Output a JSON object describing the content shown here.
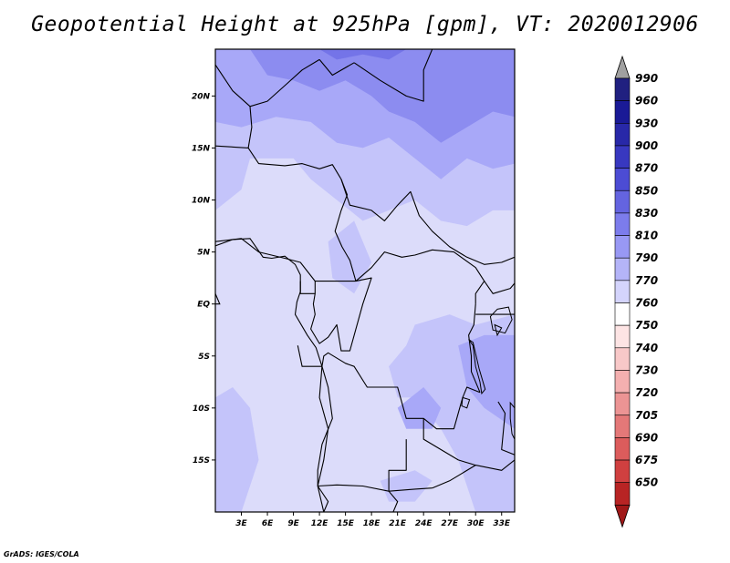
{
  "title": "Geopotential Height at 925hPa [gpm], VT: 2020012906",
  "footer": "GrADS: IGES/COLA",
  "map": {
    "lon_range": [
      0,
      34.5
    ],
    "lat_range": [
      -20,
      24.5
    ],
    "x_ticks": [
      {
        "value": 3,
        "label": "3E"
      },
      {
        "value": 6,
        "label": "6E"
      },
      {
        "value": 9,
        "label": "9E"
      },
      {
        "value": 12,
        "label": "12E"
      },
      {
        "value": 15,
        "label": "15E"
      },
      {
        "value": 18,
        "label": "18E"
      },
      {
        "value": 21,
        "label": "21E"
      },
      {
        "value": 24,
        "label": "24E"
      },
      {
        "value": 27,
        "label": "27E"
      },
      {
        "value": 30,
        "label": "30E"
      },
      {
        "value": 33,
        "label": "33E"
      }
    ],
    "y_ticks": [
      {
        "value": 20,
        "label": "20N"
      },
      {
        "value": 15,
        "label": "15N"
      },
      {
        "value": 10,
        "label": "10N"
      },
      {
        "value": 5,
        "label": "5N"
      },
      {
        "value": 0,
        "label": "EQ"
      },
      {
        "value": -5,
        "label": "5S"
      },
      {
        "value": -10,
        "label": "10S"
      },
      {
        "value": -15,
        "label": "15S"
      }
    ],
    "background_color": "#dcdcfa",
    "shading": [
      {
        "level": "790",
        "color": "#c4c4fa",
        "polygons": [
          [
            [
              0,
              9
            ],
            [
              3,
              11
            ],
            [
              4,
              14
            ],
            [
              9,
              14
            ],
            [
              11,
              12
            ],
            [
              14,
              10
            ],
            [
              17,
              8
            ],
            [
              20,
              9
            ],
            [
              23,
              10
            ],
            [
              26,
              8
            ],
            [
              29,
              7.5
            ],
            [
              32,
              9
            ],
            [
              34.5,
              9
            ],
            [
              34.5,
              24.5
            ],
            [
              0,
              24.5
            ]
          ],
          [
            [
              13,
              6
            ],
            [
              16,
              8
            ],
            [
              18,
              4
            ],
            [
              16,
              1
            ],
            [
              13.5,
              2.5
            ]
          ],
          [
            [
              23,
              -2
            ],
            [
              27,
              -1
            ],
            [
              30,
              -2
            ],
            [
              34.5,
              -1
            ],
            [
              34.5,
              -20
            ],
            [
              30,
              -20
            ],
            [
              28,
              -15
            ],
            [
              26,
              -12
            ],
            [
              23,
              -9
            ],
            [
              21,
              -9
            ],
            [
              20,
              -6
            ],
            [
              22,
              -4
            ]
          ],
          [
            [
              0,
              -9
            ],
            [
              2,
              -8
            ],
            [
              4,
              -10
            ],
            [
              5,
              -15
            ],
            [
              3,
              -20
            ],
            [
              0,
              -20
            ]
          ],
          [
            [
              19,
              -17
            ],
            [
              23,
              -16
            ],
            [
              25,
              -17
            ],
            [
              23,
              -19
            ],
            [
              20,
              -19
            ]
          ]
        ]
      },
      {
        "level": "810",
        "color": "#a8a8f8",
        "polygons": [
          [
            [
              0,
              17.5
            ],
            [
              3,
              17
            ],
            [
              7,
              18
            ],
            [
              11,
              17.5
            ],
            [
              14,
              15.5
            ],
            [
              17,
              15
            ],
            [
              20,
              16
            ],
            [
              23,
              14
            ],
            [
              26,
              12
            ],
            [
              29,
              14
            ],
            [
              32,
              13
            ],
            [
              34.5,
              13.5
            ],
            [
              34.5,
              24.5
            ],
            [
              0,
              24.5
            ]
          ],
          [
            [
              28,
              -4
            ],
            [
              31,
              -3
            ],
            [
              34.5,
              -3
            ],
            [
              34.5,
              -12
            ],
            [
              31,
              -10
            ],
            [
              29,
              -8
            ]
          ],
          [
            [
              21,
              -10
            ],
            [
              24,
              -8
            ],
            [
              26,
              -10
            ],
            [
              25,
              -12
            ],
            [
              22,
              -12
            ]
          ]
        ]
      },
      {
        "level": "830",
        "color": "#8c8cf0",
        "polygons": [
          [
            [
              4,
              24.5
            ],
            [
              6,
              22
            ],
            [
              9,
              21.5
            ],
            [
              12,
              20.5
            ],
            [
              15,
              21.5
            ],
            [
              18,
              20
            ],
            [
              20,
              18.5
            ],
            [
              23,
              17.5
            ],
            [
              26,
              15.5
            ],
            [
              29,
              17
            ],
            [
              32,
              18.5
            ],
            [
              34.5,
              18
            ],
            [
              34.5,
              24.5
            ]
          ]
        ]
      },
      {
        "level": "850",
        "color": "#7474e8",
        "polygons": [
          [
            [
              12,
              24.5
            ],
            [
              14,
              23.5
            ],
            [
              17,
              24
            ],
            [
              20,
              23.5
            ],
            [
              22,
              24.5
            ]
          ]
        ]
      }
    ],
    "borders": [
      [
        [
          0,
          23
        ],
        [
          2,
          20.5
        ],
        [
          4,
          19
        ],
        [
          6,
          19.5
        ],
        [
          8,
          21
        ],
        [
          10,
          22.5
        ],
        [
          12,
          23.5
        ]
      ],
      [
        [
          12,
          23.5
        ],
        [
          13.5,
          22
        ],
        [
          16,
          23.2
        ]
      ],
      [
        [
          16,
          23.2
        ],
        [
          19,
          21.5
        ],
        [
          22,
          20
        ],
        [
          24,
          19.5
        ],
        [
          24,
          22.5
        ],
        [
          25,
          24.5
        ]
      ],
      [
        [
          3.8,
          15
        ],
        [
          4.2,
          17
        ],
        [
          4,
          19
        ]
      ],
      [
        [
          0,
          15.2
        ],
        [
          3.8,
          15
        ],
        [
          5,
          13.5
        ],
        [
          8,
          13.3
        ],
        [
          10,
          13.5
        ],
        [
          12,
          13
        ],
        [
          13.5,
          13.4
        ],
        [
          14.5,
          12
        ]
      ],
      [
        [
          14.5,
          12
        ],
        [
          15.2,
          10.5
        ],
        [
          14.5,
          9
        ],
        [
          13.8,
          7
        ],
        [
          14.6,
          5.5
        ],
        [
          15.5,
          4.2
        ],
        [
          16.2,
          2.2
        ]
      ],
      [
        [
          14.5,
          12
        ],
        [
          15.5,
          9.5
        ],
        [
          18,
          9
        ],
        [
          19.5,
          8
        ],
        [
          21,
          9.5
        ],
        [
          22.5,
          10.8
        ],
        [
          23.5,
          8.5
        ],
        [
          25,
          7
        ],
        [
          27,
          5.5
        ],
        [
          29,
          4.5
        ],
        [
          31,
          3.8
        ],
        [
          33,
          4
        ],
        [
          34.5,
          4.5
        ]
      ],
      [
        [
          16.2,
          2.2
        ],
        [
          18,
          3.5
        ],
        [
          19.5,
          5
        ],
        [
          21.5,
          4.5
        ],
        [
          23,
          4.7
        ],
        [
          25,
          5.2
        ],
        [
          27.5,
          5
        ],
        [
          30,
          3.5
        ],
        [
          31,
          2.2
        ],
        [
          30,
          1
        ],
        [
          30,
          0
        ]
      ],
      [
        [
          0,
          6
        ],
        [
          3,
          6.3
        ],
        [
          5,
          5
        ],
        [
          8,
          4.4
        ],
        [
          9.8,
          4
        ],
        [
          11.5,
          2.2
        ],
        [
          11.5,
          1
        ],
        [
          9.8,
          1
        ],
        [
          9.8,
          2.2
        ]
      ],
      [
        [
          11.5,
          2.2
        ],
        [
          13.5,
          2.2
        ],
        [
          16.2,
          2.2
        ]
      ],
      [
        [
          11.5,
          1
        ],
        [
          11.3,
          0
        ],
        [
          11.5,
          -1
        ],
        [
          11,
          -2.4
        ],
        [
          12,
          -3.8
        ],
        [
          13,
          -3.2
        ],
        [
          14,
          -2
        ],
        [
          14.5,
          -4.5
        ],
        [
          15.5,
          -4.5
        ],
        [
          17,
          0
        ],
        [
          18,
          2.5
        ],
        [
          16.2,
          2.2
        ]
      ],
      [
        [
          12.3,
          -6
        ],
        [
          12.5,
          -5
        ],
        [
          13,
          -4.7
        ],
        [
          15,
          -5.7
        ],
        [
          16,
          -6
        ],
        [
          17.5,
          -8
        ],
        [
          19,
          -8
        ],
        [
          21,
          -8
        ],
        [
          22,
          -11
        ],
        [
          24,
          -11
        ],
        [
          25.5,
          -12
        ],
        [
          27.5,
          -12
        ],
        [
          28.5,
          -9
        ],
        [
          29,
          -8
        ],
        [
          30.5,
          -8.5
        ]
      ],
      [
        [
          30,
          0
        ],
        [
          29.8,
          -2
        ],
        [
          29.2,
          -3
        ],
        [
          29.5,
          -5
        ],
        [
          29.5,
          -6.5
        ],
        [
          30.5,
          -8.5
        ]
      ],
      [
        [
          31,
          2.2
        ],
        [
          32,
          1
        ],
        [
          34,
          1.5
        ],
        [
          34.5,
          2
        ]
      ],
      [
        [
          30,
          -1
        ],
        [
          31.5,
          -1
        ],
        [
          34,
          -1
        ],
        [
          34.5,
          -1
        ]
      ],
      [
        [
          12.3,
          -6
        ],
        [
          12,
          -9
        ],
        [
          13,
          -12
        ],
        [
          12.5,
          -15
        ],
        [
          11.8,
          -17.5
        ]
      ],
      [
        [
          11.8,
          -17.5
        ],
        [
          14,
          -17.4
        ],
        [
          17,
          -17.5
        ],
        [
          20,
          -18
        ],
        [
          23,
          -17.8
        ],
        [
          25,
          -17.7
        ]
      ],
      [
        [
          22,
          -13
        ],
        [
          22,
          -16
        ],
        [
          20,
          -16
        ],
        [
          20,
          -18
        ]
      ],
      [
        [
          24,
          -11
        ],
        [
          24,
          -13
        ],
        [
          28,
          -15
        ],
        [
          30,
          -15.5
        ]
      ],
      [
        [
          25,
          -17.7
        ],
        [
          27,
          -17
        ],
        [
          30,
          -15.5
        ],
        [
          33,
          -16
        ],
        [
          34.5,
          -15
        ]
      ],
      [
        [
          32.6,
          -9.4
        ],
        [
          33.4,
          -10.5
        ],
        [
          33,
          -14
        ],
        [
          34.5,
          -14.5
        ]
      ],
      [
        [
          20,
          -18
        ],
        [
          21,
          -19
        ],
        [
          20.5,
          -20
        ]
      ],
      [
        [
          12.5,
          -20
        ],
        [
          13,
          -19
        ],
        [
          11.8,
          -17.5
        ]
      ],
      [
        [
          27.5,
          -20
        ],
        [
          29,
          -20
        ]
      ],
      [
        [
          9.5,
          -4
        ],
        [
          10,
          -6
        ],
        [
          11,
          -6
        ],
        [
          12.3,
          -6
        ]
      ]
    ],
    "lakes": [
      [
        [
          32.5,
          -0.5
        ],
        [
          33.8,
          -0.3
        ],
        [
          34.2,
          -1.5
        ],
        [
          33.4,
          -2.8
        ],
        [
          32,
          -2.5
        ],
        [
          31.7,
          -1.2
        ]
      ],
      [
        [
          29.2,
          -3.4
        ],
        [
          29.7,
          -4
        ],
        [
          30,
          -6
        ],
        [
          30.5,
          -7.5
        ],
        [
          30.7,
          -8.6
        ],
        [
          31.1,
          -8.2
        ],
        [
          30.4,
          -6.2
        ],
        [
          29.7,
          -3.7
        ]
      ],
      [
        [
          34,
          -9.5
        ],
        [
          34.5,
          -10
        ],
        [
          34.5,
          -13
        ],
        [
          34.2,
          -12.5
        ],
        [
          34,
          -11
        ]
      ],
      [
        [
          28.5,
          -9
        ],
        [
          29.3,
          -9.2
        ],
        [
          29,
          -10
        ],
        [
          28.4,
          -9.8
        ]
      ],
      [
        [
          32.2,
          -2
        ],
        [
          33,
          -2.3
        ],
        [
          32.5,
          -3
        ]
      ]
    ],
    "coastline": [
      [
        [
          0,
          5.6
        ],
        [
          2,
          6.2
        ],
        [
          4,
          6.3
        ],
        [
          5.5,
          4.5
        ],
        [
          6.5,
          4.4
        ],
        [
          8,
          4.6
        ],
        [
          9.2,
          3.8
        ],
        [
          9.8,
          2.8
        ],
        [
          9.8,
          1.2
        ],
        [
          9.4,
          0.2
        ],
        [
          9.2,
          -1
        ],
        [
          10.6,
          -3
        ],
        [
          11.6,
          -4.2
        ],
        [
          12.3,
          -6
        ],
        [
          13,
          -8
        ],
        [
          13.5,
          -11
        ],
        [
          12.3,
          -13.5
        ],
        [
          11.8,
          -16
        ],
        [
          11.8,
          -17.5
        ],
        [
          12.5,
          -20
        ]
      ],
      [
        [
          0,
          0
        ],
        [
          0.5,
          0
        ],
        [
          0,
          1
        ]
      ]
    ]
  },
  "colorbar": {
    "levels": [
      {
        "label": "990",
        "color": "#202080"
      },
      {
        "label": "960",
        "color": "#1a1a96"
      },
      {
        "label": "930",
        "color": "#2828a8"
      },
      {
        "label": "900",
        "color": "#3838c0"
      },
      {
        "label": "870",
        "color": "#4c4cd4"
      },
      {
        "label": "850",
        "color": "#6464e0"
      },
      {
        "label": "830",
        "color": "#7c7cec"
      },
      {
        "label": "810",
        "color": "#9898f4"
      },
      {
        "label": "790",
        "color": "#b4b4f8"
      },
      {
        "label": "770",
        "color": "#d4d4fc"
      },
      {
        "label": "760",
        "color": "#ffffff"
      },
      {
        "label": "750",
        "color": "#fde4e4"
      },
      {
        "label": "740",
        "color": "#f8c8c8"
      },
      {
        "label": "730",
        "color": "#f4b0b0"
      },
      {
        "label": "720",
        "color": "#ec9494"
      },
      {
        "label": "705",
        "color": "#e47878"
      },
      {
        "label": "690",
        "color": "#dc5c5c"
      },
      {
        "label": "675",
        "color": "#d04040"
      },
      {
        "label": "650",
        "color": "#b82424"
      }
    ],
    "top_arrow_color": "#a0a0a0",
    "bottom_arrow_color": "#a01818",
    "lowest_segment_color": "#c03030"
  }
}
